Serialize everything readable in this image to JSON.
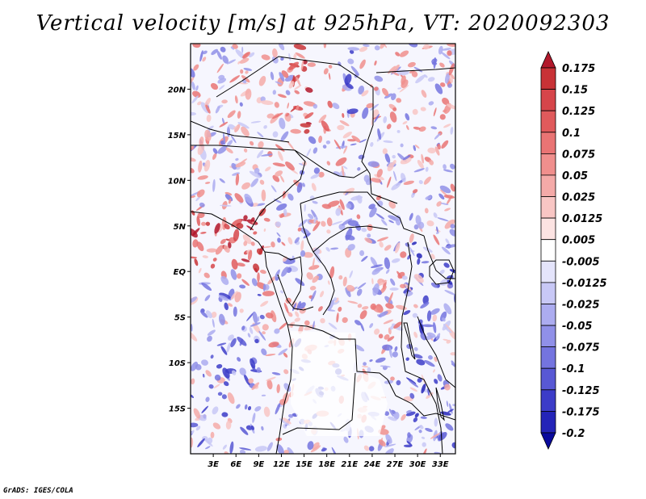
{
  "title": "Vertical velocity [m/s] at 925hPa, VT: 2020092303",
  "credit": "GrADS: IGES/COLA",
  "map": {
    "lon_range": [
      0,
      35
    ],
    "lat_range": [
      -20,
      25
    ],
    "lon_ticks": [
      "3E",
      "6E",
      "9E",
      "12E",
      "15E",
      "18E",
      "21E",
      "24E",
      "27E",
      "30E",
      "33E"
    ],
    "lon_tick_values": [
      3,
      6,
      9,
      12,
      15,
      18,
      21,
      24,
      27,
      30,
      33
    ],
    "lat_ticks": [
      "20N",
      "15N",
      "10N",
      "5N",
      "EQ",
      "5S",
      "10S",
      "15S"
    ],
    "lat_tick_values": [
      20,
      15,
      10,
      5,
      0,
      -5,
      -10,
      -15
    ]
  },
  "colorbar": {
    "labels": [
      "0.175",
      "0.15",
      "0.125",
      "0.1",
      "0.075",
      "0.05",
      "0.025",
      "0.0125",
      "0.005",
      "-0.005",
      "-0.0125",
      "-0.025",
      "-0.05",
      "-0.075",
      "-0.1",
      "-0.125",
      "-0.175",
      "-0.2"
    ],
    "colors": [
      "#b2182b",
      "#c83236",
      "#d6454a",
      "#e05a5c",
      "#e97474",
      "#f08f8d",
      "#f4aaa8",
      "#f8c6c4",
      "#fce3e2",
      "#ffffff",
      "#e4e4fb",
      "#c8c8f6",
      "#acacf0",
      "#9090e8",
      "#7474df",
      "#5858d4",
      "#3c3cc8",
      "#2424b8",
      "#0a0a9c"
    ]
  }
}
